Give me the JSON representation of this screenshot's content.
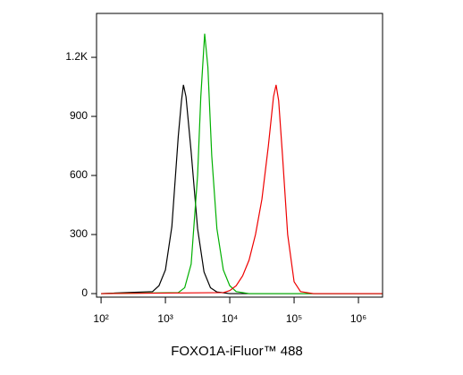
{
  "chart_data": {
    "type": "line",
    "x_label": "FOXO1A-iFluor™ 488",
    "log_x": true,
    "xlim": [
      85,
      2370000
    ],
    "xticks": [
      {
        "value": 100,
        "label": "10²"
      },
      {
        "value": 1000,
        "label": "10³"
      },
      {
        "value": 10000,
        "label": "10⁴"
      },
      {
        "value": 100000,
        "label": "10⁵"
      },
      {
        "value": 1000000,
        "label": "10⁶"
      }
    ],
    "ylim": [
      -18,
      1423
    ],
    "yticks": [
      0,
      300,
      600,
      900,
      {
        "value": 1200,
        "label": "1.2K"
      }
    ],
    "series": [
      {
        "color": "#000000",
        "x": [
          100,
          631,
          794,
          1000,
          1259,
          1585,
          1778,
          1905,
          2089,
          2512,
          3162,
          3981,
          5012,
          6310,
          10000,
          2340000
        ],
        "values": [
          0,
          10,
          40,
          120,
          340,
          800,
          980,
          1060,
          1000,
          720,
          330,
          110,
          30,
          8,
          0,
          0
        ]
      },
      {
        "color": "#00b000",
        "x": [
          100,
          1585,
          1995,
          2512,
          3162,
          3548,
          4074,
          4571,
          5248,
          6310,
          7943,
          10000,
          12589,
          19953,
          2340000
        ],
        "values": [
          0,
          5,
          30,
          150,
          600,
          1000,
          1320,
          1150,
          700,
          330,
          120,
          40,
          10,
          0,
          0
        ]
      },
      {
        "color": "#ee0000",
        "x": [
          100,
          7943,
          10000,
          12589,
          15849,
          19953,
          25119,
          31623,
          39811,
          47863,
          52481,
          57544,
          66069,
          79433,
          100000,
          125893,
          199526,
          2340000
        ],
        "values": [
          0,
          5,
          15,
          40,
          90,
          170,
          300,
          480,
          750,
          1000,
          1060,
          980,
          700,
          300,
          60,
          10,
          0,
          0
        ]
      }
    ]
  }
}
